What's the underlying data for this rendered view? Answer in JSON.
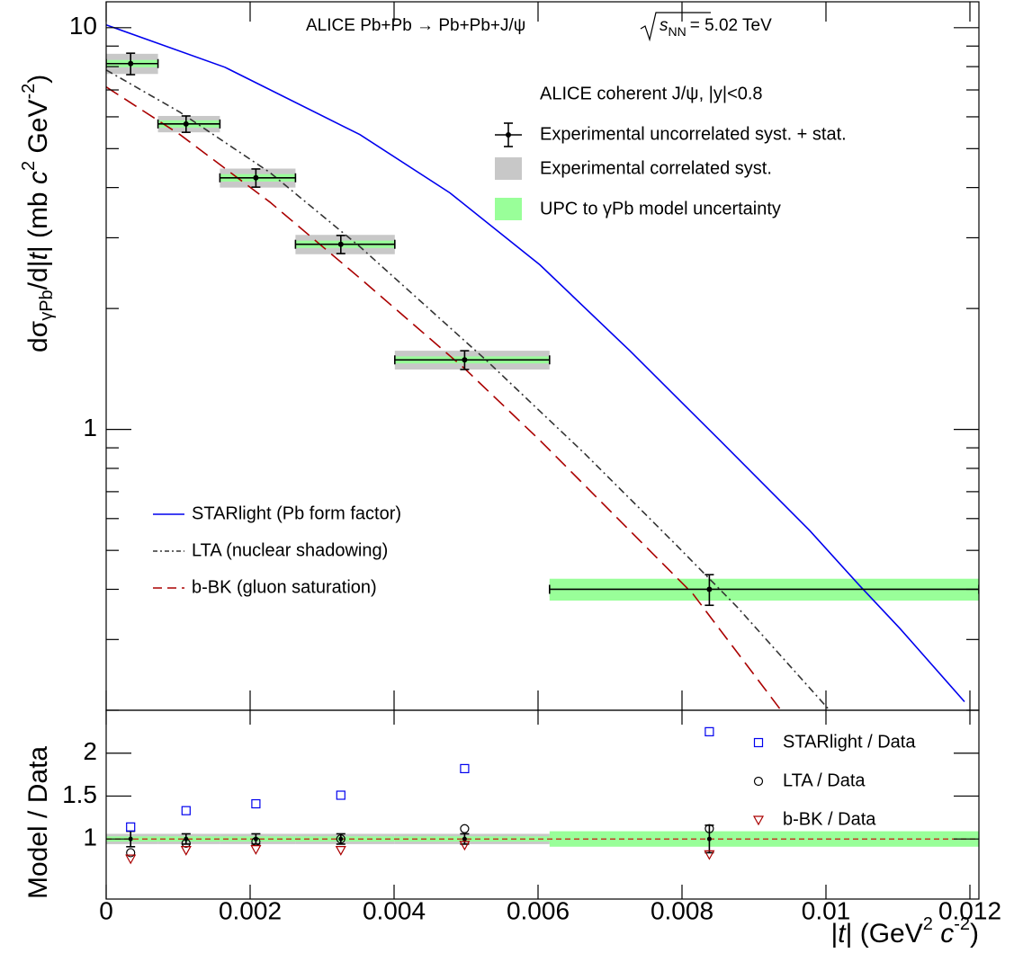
{
  "chart_data": {
    "type": "scatter",
    "title": "ALICE Pb+Pb → Pb+Pb+J/ψ",
    "energy": {
      "symbol": "s",
      "subscript": "NN",
      "value": "= 5.02 TeV"
    },
    "xlabel": [
      "|",
      "t",
      "| (GeV",
      "2",
      " ",
      "c",
      "-2",
      ")"
    ],
    "ylabel": [
      "dσ",
      "γPb",
      "/d|",
      "t",
      "| (mb ",
      "c",
      "2",
      " GeV",
      "-2",
      ")"
    ],
    "xlim": [
      0,
      0.012125
    ],
    "xticks": [
      0,
      0.002,
      0.004,
      0.006,
      0.008,
      0.01,
      0.012
    ],
    "ylim": [
      0.2,
      11.6
    ],
    "log_y": true,
    "yticks": [
      1,
      10
    ],
    "yminorticks": [
      0.2,
      0.3,
      0.4,
      0.5,
      0.6,
      0.7,
      0.8,
      0.9,
      2,
      3,
      4,
      5,
      6,
      7,
      8,
      9
    ],
    "legend_header": "ALICE coherent J/ψ, |y|<0.8",
    "data": {
      "name": "Experimental uncorrelated syst. + stat.",
      "color": "#000000",
      "x": [
        0.00034,
        0.00111,
        0.00208,
        0.00326,
        0.00498,
        0.00838
      ],
      "bin_low": [
        0,
        0.00072,
        0.00158,
        0.00263,
        0.00401,
        0.00616
      ],
      "bin_high": [
        0.00072,
        0.00158,
        0.00263,
        0.00401,
        0.00616,
        0.012125
      ],
      "values": [
        8.14,
        5.76,
        4.23,
        2.89,
        1.49,
        0.4
      ],
      "errors": [
        0.5,
        0.27,
        0.22,
        0.15,
        0.08,
        0.035
      ]
    },
    "correlated": {
      "name": "Experimental correlated syst.",
      "color": "#c8c8c8",
      "values": [
        0.47,
        0.27,
        0.23,
        0.16,
        0.08,
        0.017
      ]
    },
    "model_unc": {
      "name": "UPC to γPb model uncertainty",
      "color": "#99ff99",
      "values": [
        0.17,
        0.12,
        0.09,
        0.06,
        0.03,
        0.025
      ]
    },
    "curves": [
      {
        "name": "STARlight (Pb form factor)",
        "color": "#0000ee",
        "dash": "none",
        "x": [
          0,
          0.00165,
          0.003525,
          0.004775,
          0.006025,
          0.007275,
          0.008525,
          0.009775,
          0.01046,
          0.011025,
          0.011925
        ],
        "values": [
          10.16,
          7.97,
          5.42,
          3.88,
          2.57,
          1.57,
          0.94,
          0.56,
          0.41,
          0.32,
          0.21
        ]
      },
      {
        "name": "LTA (nuclear shadowing)",
        "color": "#333333",
        "dash": "8 4 2 4",
        "x": [
          0,
          0.001025,
          0.002275,
          0.003525,
          0.005275,
          0.00665,
          0.0079,
          0.008775,
          0.01005
        ],
        "values": [
          7.85,
          6.16,
          4.36,
          2.85,
          1.49,
          0.87,
          0.52,
          0.36,
          0.2
        ]
      },
      {
        "name": "b-BK (gluon saturation)",
        "color": "#aa0000",
        "dash": "16 8",
        "x": [
          0,
          0.001025,
          0.002275,
          0.003525,
          0.004975,
          0.006025,
          0.007275,
          0.00815,
          0.009375
        ],
        "values": [
          7.12,
          5.42,
          3.68,
          2.38,
          1.42,
          0.94,
          0.56,
          0.39,
          0.2
        ]
      }
    ],
    "ratio": {
      "ylabel": "Model / Data",
      "ylim": [
        0.3,
        2.5
      ],
      "yticks": [
        1,
        1.5,
        2
      ],
      "reference": 1,
      "data_values": [
        1,
        1,
        1,
        1,
        1,
        1
      ],
      "data_errors": [
        0.09,
        0.06,
        0.06,
        0.06,
        0.06,
        0.16
      ],
      "correlated": [
        0.06,
        0.06,
        0.06,
        0.06,
        0.06,
        0.04
      ],
      "model_unc": [
        0.03,
        0.03,
        0.03,
        0.03,
        0.03,
        0.09
      ],
      "series": [
        {
          "name": "STARlight / Data",
          "color": "#0000ee",
          "marker": "square",
          "values": [
            1.14,
            1.33,
            1.41,
            1.51,
            1.82,
            2.25
          ]
        },
        {
          "name": "LTA / Data",
          "color": "#000000",
          "marker": "circle",
          "values": [
            0.84,
            0.95,
            0.97,
            1.0,
            1.12,
            1.12
          ]
        },
        {
          "name": "b-BK / Data",
          "color": "#aa0000",
          "marker": "triangle",
          "values": [
            0.77,
            0.87,
            0.88,
            0.87,
            0.93,
            0.82
          ]
        }
      ]
    }
  }
}
